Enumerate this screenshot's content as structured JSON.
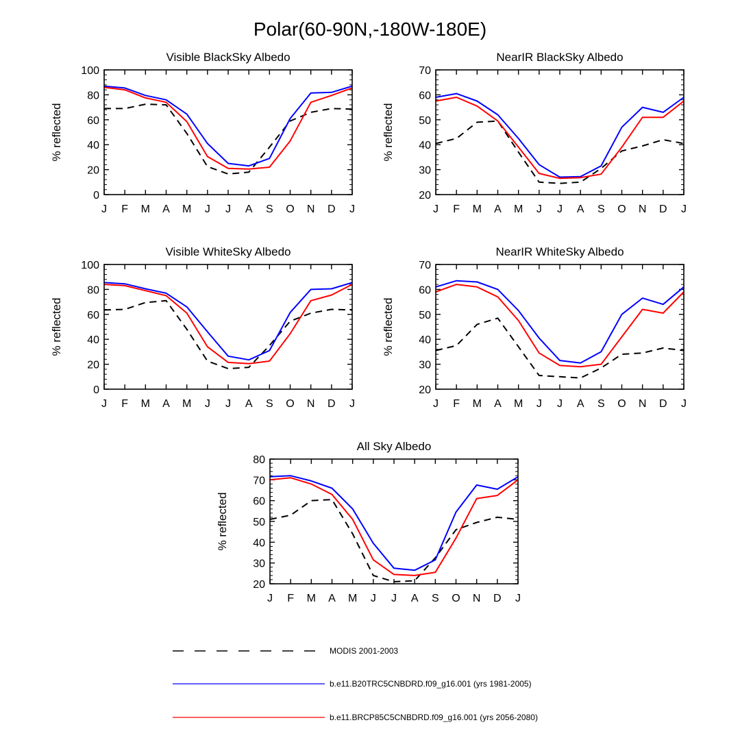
{
  "figure_title": "Polar(60-90N,-180W-180E)",
  "legend": [
    {
      "label": "MODIS 2001-2003",
      "color": "#000000",
      "dash": "dashed"
    },
    {
      "label": "b.e11.B20TRC5CNBDRD.f09_g16.001 (yrs 1981-2005)",
      "color": "#0000ff",
      "dash": "solid"
    },
    {
      "label": "b.e11.BRCP85C5CNBDRD.f09_g16.001 (yrs 2056-2080)",
      "color": "#ff0000",
      "dash": "solid"
    }
  ],
  "chart_data": [
    {
      "type": "line",
      "title": "Visible BlackSky Albedo",
      "ylabel": "% reflected",
      "xlabel": "",
      "categories": [
        "J",
        "F",
        "M",
        "A",
        "M",
        "J",
        "J",
        "A",
        "S",
        "O",
        "N",
        "D",
        "J"
      ],
      "ylim": [
        0,
        100
      ],
      "yticks": [
        0,
        20,
        40,
        60,
        80,
        100
      ],
      "series": [
        {
          "key": "modis",
          "values": [
            69,
            69,
            72.5,
            72,
            49,
            22.5,
            16.5,
            18,
            38,
            59,
            66,
            69,
            68.5
          ]
        },
        {
          "key": "hist",
          "values": [
            87,
            85.5,
            79.5,
            76,
            64.5,
            41,
            25,
            23,
            29,
            61,
            81.5,
            82,
            87
          ]
        },
        {
          "key": "rcp85",
          "values": [
            86,
            84,
            77.5,
            74,
            58.5,
            30.5,
            21,
            20.5,
            22,
            43,
            74,
            79.5,
            85.5
          ]
        }
      ]
    },
    {
      "type": "line",
      "title": "NearIR BlackSky Albedo",
      "ylabel": "% reflected",
      "xlabel": "",
      "categories": [
        "J",
        "F",
        "M",
        "A",
        "M",
        "J",
        "J",
        "A",
        "S",
        "O",
        "N",
        "D",
        "J"
      ],
      "ylim": [
        20,
        70
      ],
      "yticks": [
        20,
        30,
        40,
        50,
        60,
        70
      ],
      "series": [
        {
          "key": "modis",
          "values": [
            40.5,
            42.5,
            49,
            49.5,
            37,
            25,
            24.5,
            25,
            30.5,
            37.5,
            39.5,
            42,
            40.5
          ]
        },
        {
          "key": "hist",
          "values": [
            59,
            60.5,
            57.5,
            52,
            42.5,
            32,
            27,
            27.2,
            31.5,
            47,
            55,
            53,
            59
          ]
        },
        {
          "key": "rcp85",
          "values": [
            57.5,
            59,
            55.5,
            49.5,
            39,
            28.5,
            26.5,
            26.8,
            28.2,
            39,
            51,
            51,
            57.5
          ]
        }
      ]
    },
    {
      "type": "line",
      "title": "Visible WhiteSky Albedo",
      "ylabel": "% reflected",
      "xlabel": "",
      "categories": [
        "J",
        "F",
        "M",
        "A",
        "M",
        "J",
        "J",
        "A",
        "S",
        "O",
        "N",
        "D",
        "J"
      ],
      "ylim": [
        0,
        100
      ],
      "yticks": [
        0,
        20,
        40,
        60,
        80,
        100
      ],
      "series": [
        {
          "key": "modis",
          "values": [
            63.5,
            64,
            69.5,
            71,
            48,
            22.5,
            16.5,
            17.5,
            35,
            54.5,
            61,
            64,
            63.5
          ]
        },
        {
          "key": "hist",
          "values": [
            85.5,
            84.5,
            80.5,
            77,
            66,
            46,
            26.5,
            23.5,
            31,
            61.5,
            80,
            80.5,
            85.5
          ]
        },
        {
          "key": "rcp85",
          "values": [
            84,
            83,
            79,
            75,
            61,
            34,
            21.5,
            20.5,
            22.5,
            44.5,
            71,
            75.5,
            84
          ]
        }
      ]
    },
    {
      "type": "line",
      "title": "NearIR WhiteSky Albedo",
      "ylabel": "% reflected",
      "xlabel": "",
      "categories": [
        "J",
        "F",
        "M",
        "A",
        "M",
        "J",
        "J",
        "A",
        "S",
        "O",
        "N",
        "D",
        "J"
      ],
      "ylim": [
        20,
        70
      ],
      "yticks": [
        20,
        30,
        40,
        50,
        60,
        70
      ],
      "series": [
        {
          "key": "modis",
          "values": [
            35.5,
            37.5,
            46,
            48.5,
            37,
            25.5,
            25,
            24.5,
            28.5,
            34,
            34.5,
            36.5,
            35.5
          ]
        },
        {
          "key": "hist",
          "values": [
            61,
            63.5,
            63,
            60,
            51.5,
            40.5,
            31.5,
            30.5,
            35,
            50,
            56.5,
            54,
            61
          ]
        },
        {
          "key": "rcp85",
          "values": [
            59,
            62,
            61,
            57,
            47.5,
            34.5,
            29.5,
            29,
            30,
            41,
            52,
            50.5,
            59
          ]
        }
      ]
    },
    {
      "type": "line",
      "title": "All Sky Albedo",
      "ylabel": "% reflected",
      "xlabel": "",
      "categories": [
        "J",
        "F",
        "M",
        "A",
        "M",
        "J",
        "J",
        "A",
        "S",
        "O",
        "N",
        "D",
        "J"
      ],
      "ylim": [
        20,
        80
      ],
      "yticks": [
        20,
        30,
        40,
        50,
        60,
        70,
        80
      ],
      "series": [
        {
          "key": "modis",
          "values": [
            51,
            53,
            60,
            60.5,
            44,
            24,
            21,
            21.5,
            32.5,
            46,
            49.5,
            52,
            51
          ]
        },
        {
          "key": "hist",
          "values": [
            71.5,
            72,
            69.5,
            66,
            56,
            39.5,
            27.5,
            26.5,
            31.5,
            54.5,
            67.5,
            65.5,
            71.5
          ]
        },
        {
          "key": "rcp85",
          "values": [
            70,
            71,
            68,
            63,
            51,
            31.5,
            24.5,
            24,
            25.5,
            42,
            61,
            62.5,
            70
          ]
        }
      ]
    }
  ]
}
